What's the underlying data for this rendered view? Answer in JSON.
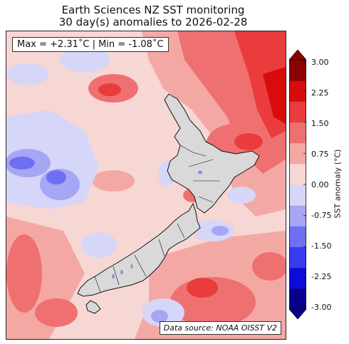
{
  "title": {
    "line1": "Earth Sciences NZ SST monitoring",
    "line2": "30 day(s) anomalies to 2026-02-28"
  },
  "stats_box": "Max = +2.31˚C | Min = -1.08˚C",
  "source_box": "Data source: NOAA OISST V2",
  "colorbar": {
    "label": "SST anomaly (°C)",
    "ticks": [
      "3.00",
      "2.25",
      "1.50",
      "0.75",
      "0.00",
      "-0.75",
      "-1.50",
      "-2.25",
      "-3.00"
    ],
    "range": [
      -3.0,
      3.0
    ],
    "extend": "both",
    "colors": [
      "#08008b",
      "#0c0cd8",
      "#3a3aef",
      "#6f6ff3",
      "#a6a6f5",
      "#d6d6f8",
      "#f8d6d4",
      "#f4a8a4",
      "#ef7070",
      "#ea3c3c",
      "#d80c0c",
      "#8b0000"
    ]
  },
  "map": {
    "land_color": "#d9d9d9",
    "ocean_base_color": "#f7d7d4"
  }
}
